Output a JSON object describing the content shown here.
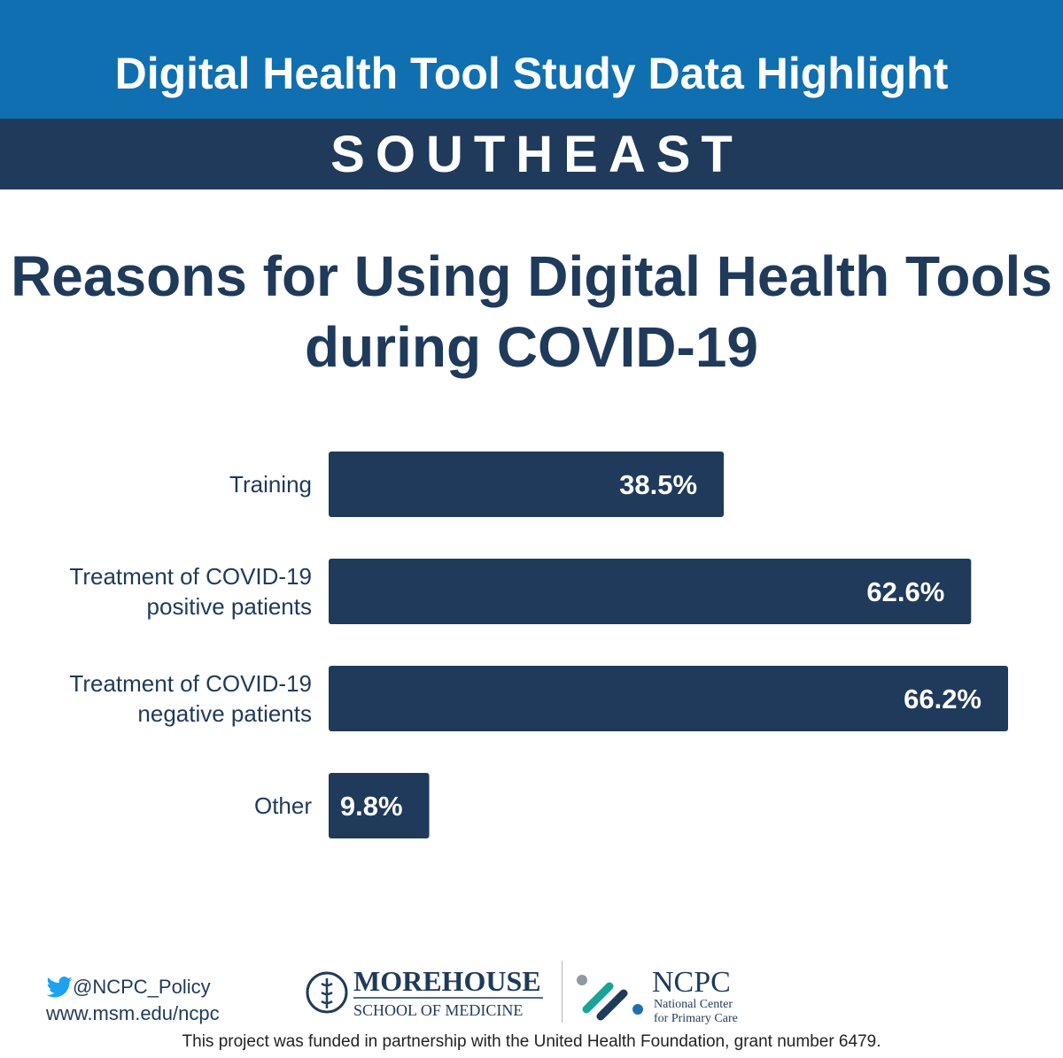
{
  "header": {
    "title": "Digital Health Tool Study Data Highlight",
    "region": "SOUTHEAST"
  },
  "chart_data": {
    "type": "bar",
    "orientation": "horizontal",
    "title": "Reasons for Using Digital Health Tools during COVID-19",
    "categories": [
      [
        "Training"
      ],
      [
        "Treatment of COVID-19",
        "positive patients"
      ],
      [
        "Treatment of COVID-19",
        "negative patients"
      ],
      [
        "Other"
      ]
    ],
    "values": [
      38.5,
      62.6,
      66.2,
      9.8
    ],
    "labels": [
      "38.5%",
      "62.6%",
      "66.2%",
      "9.8%"
    ],
    "xlim": [
      0,
      66.2
    ],
    "xlabel": "",
    "ylabel": "",
    "grid": false,
    "bar_color": "#1f3a5a"
  },
  "footer": {
    "twitter": "@NCPC_Policy",
    "website": "www.msm.edu/ncpc",
    "logo1": {
      "name": "MOREHOUSE",
      "sub": "SCHOOL OF MEDICINE"
    },
    "logo2": {
      "name": "NCPC",
      "sub1": "National Center",
      "sub2": "for Primary Care"
    },
    "funding": "This project was funded in partnership with the United Health Foundation, grant number 6479."
  },
  "colors": {
    "banner_blue": "#0f6fb0",
    "navy": "#1f3a5a",
    "twitter_blue": "#1da1f2",
    "ncpc_teal": "#1aa39a",
    "ncpc_gray": "#8f9aa5"
  }
}
